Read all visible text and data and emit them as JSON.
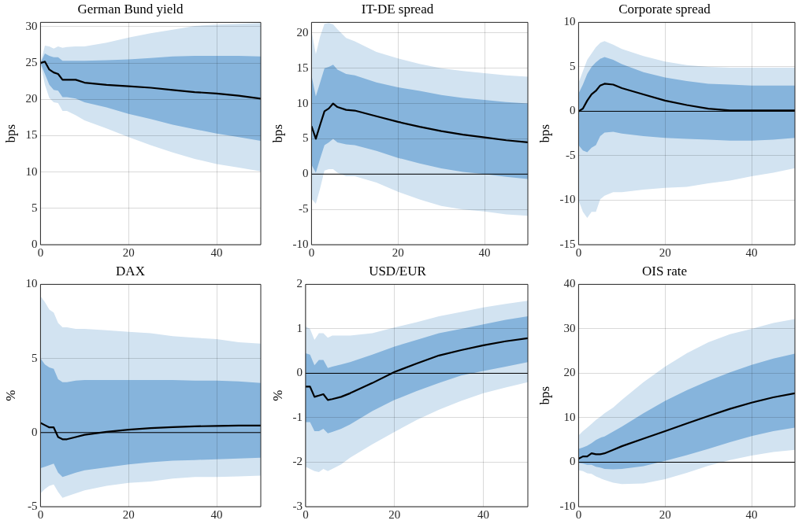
{
  "chart_data": [
    {
      "type": "line",
      "title": "German Bund yield",
      "ylabel": "bps",
      "xlim": [
        0,
        50
      ],
      "xticks": [
        0,
        20,
        40
      ],
      "ylim": [
        0,
        30.6
      ],
      "yticks": [
        0,
        5,
        10,
        15,
        20,
        25,
        30
      ],
      "grid": true,
      "marker": "none",
      "x": [
        0,
        1,
        2,
        3,
        4,
        5,
        6,
        8,
        10,
        15,
        20,
        25,
        30,
        35,
        40,
        45,
        50
      ],
      "series": [
        {
          "color": "#d2e3f1",
          "values": [
            null,
            null,
            null,
            null,
            null,
            null,
            null,
            null,
            null,
            null,
            null,
            null,
            null,
            null,
            null,
            null,
            null
          ],
          "lower": [
            25,
            22.0,
            20.2,
            19.6,
            19.5,
            18.4,
            18.4,
            17.8,
            17.1,
            16.0,
            14.8,
            13.7,
            12.7,
            11.8,
            11.1,
            10.6,
            10.1
          ],
          "upper": [
            25,
            27.4,
            27.3,
            27.0,
            27.3,
            27.1,
            27.2,
            27.3,
            27.3,
            27.8,
            28.5,
            29.1,
            29.6,
            30.1,
            30.3,
            30.4,
            30.5
          ]
        },
        {
          "color": "#86b4dc",
          "values": [
            null,
            null,
            null,
            null,
            null,
            null,
            null,
            null,
            null,
            null,
            null,
            null,
            null,
            null,
            null,
            null,
            null
          ],
          "lower": [
            25,
            23.5,
            22.0,
            21.3,
            21.2,
            20.3,
            20.3,
            20.1,
            19.6,
            18.9,
            18.0,
            17.3,
            16.5,
            15.9,
            15.3,
            14.8,
            14.3
          ],
          "upper": [
            25,
            26.3,
            26.0,
            25.8,
            25.8,
            25.3,
            25.3,
            25.3,
            25.3,
            25.4,
            25.5,
            25.7,
            25.9,
            26.0,
            26.0,
            26.0,
            25.9
          ]
        },
        {
          "color": "#000000",
          "values": [
            25,
            25.2,
            24.1,
            23.7,
            23.5,
            22.7,
            22.7,
            22.7,
            22.3,
            22.0,
            21.8,
            21.6,
            21.3,
            21.0,
            20.8,
            20.5,
            20.1
          ]
        }
      ]
    },
    {
      "type": "line",
      "title": "IT-DE spread",
      "ylabel": "bps",
      "xlim": [
        0,
        50
      ],
      "xticks": [
        0,
        20,
        40
      ],
      "ylim": [
        -10,
        21.5
      ],
      "yticks": [
        -10,
        -5,
        0,
        5,
        10,
        15,
        20
      ],
      "grid": true,
      "marker": "none",
      "ref_lines": [
        {
          "axis": "y",
          "value": 0,
          "color": "#000000"
        }
      ],
      "x": [
        0,
        1,
        2,
        3,
        4,
        5,
        6,
        8,
        10,
        15,
        20,
        25,
        30,
        35,
        40,
        45,
        50
      ],
      "series": [
        {
          "color": "#d2e3f1",
          "values": [
            null,
            null,
            null,
            null,
            null,
            null,
            null,
            null,
            null,
            null,
            null,
            null,
            null,
            null,
            null,
            null,
            null
          ],
          "lower": [
            -3.5,
            -4.2,
            -2,
            0.5,
            0.7,
            0.7,
            0.2,
            -0.3,
            -0.3,
            -1.2,
            -2.5,
            -3.6,
            -4.5,
            -5.0,
            -5.3,
            -5.7,
            -5.9
          ],
          "upper": [
            20.3,
            17,
            19.5,
            21.3,
            21.4,
            21.2,
            20.5,
            19.3,
            18.8,
            17.3,
            16.4,
            15.6,
            15.0,
            14.6,
            14.3,
            14.0,
            13.8
          ]
        },
        {
          "color": "#86b4dc",
          "values": [
            null,
            null,
            null,
            null,
            null,
            null,
            null,
            null,
            null,
            null,
            null,
            null,
            null,
            null,
            null,
            null,
            null
          ],
          "lower": [
            1.3,
            0.2,
            2.2,
            4.1,
            4.5,
            5.0,
            4.5,
            4.2,
            4.1,
            3.3,
            2.3,
            1.5,
            0.8,
            0.3,
            0.0,
            -0.4,
            -0.7
          ],
          "upper": [
            14,
            11,
            13,
            15,
            15.2,
            15.5,
            14.8,
            14.2,
            14.0,
            13.0,
            12.3,
            11.8,
            11.2,
            10.8,
            10.5,
            10.2,
            10.0
          ]
        },
        {
          "color": "#000000",
          "values": [
            6.8,
            5.0,
            7.0,
            8.9,
            9.3,
            10.0,
            9.5,
            9.1,
            9.0,
            8.2,
            7.4,
            6.7,
            6.1,
            5.6,
            5.2,
            4.8,
            4.5
          ]
        }
      ]
    },
    {
      "type": "line",
      "title": "Corporate spread",
      "ylabel": "bps",
      "xlim": [
        0,
        50
      ],
      "xticks": [
        0,
        20,
        40
      ],
      "ylim": [
        -15,
        10
      ],
      "yticks": [
        -15,
        -10,
        -5,
        0,
        5,
        10
      ],
      "grid": true,
      "marker": "none",
      "ref_lines": [
        {
          "axis": "y",
          "value": 0,
          "color": "#000000"
        }
      ],
      "x": [
        0,
        1,
        2,
        3,
        4,
        5,
        6,
        8,
        10,
        15,
        20,
        25,
        30,
        35,
        40,
        45,
        50
      ],
      "series": [
        {
          "color": "#d2e3f1",
          "values": [
            null,
            null,
            null,
            null,
            null,
            null,
            null,
            null,
            null,
            null,
            null,
            null,
            null,
            null,
            null,
            null,
            null
          ],
          "lower": [
            -10,
            -11.3,
            -12,
            -11.3,
            -11.3,
            -9.9,
            -9.5,
            -9.1,
            -9.1,
            -8.8,
            -8.6,
            -8.5,
            -8.1,
            -7.8,
            -7.3,
            -6.9,
            -6.4
          ],
          "upper": [
            3.2,
            4.5,
            5.8,
            6.5,
            7.2,
            7.7,
            7.9,
            7.5,
            7.0,
            6.2,
            5.6,
            5.2,
            5.0,
            4.9,
            4.9,
            4.9,
            4.9
          ]
        },
        {
          "color": "#86b4dc",
          "values": [
            null,
            null,
            null,
            null,
            null,
            null,
            null,
            null,
            null,
            null,
            null,
            null,
            null,
            null,
            null,
            null,
            null
          ],
          "lower": [
            -3.8,
            -4.4,
            -4.6,
            -4.1,
            -3.8,
            -2.8,
            -2.4,
            -2.3,
            -2.5,
            -2.8,
            -3.0,
            -3.1,
            -3.2,
            -3.3,
            -3.3,
            -3.2,
            -3.0
          ],
          "upper": [
            2.0,
            3.0,
            4.2,
            5.0,
            5.5,
            5.9,
            6.1,
            5.8,
            5.3,
            4.4,
            3.8,
            3.4,
            3.1,
            3.0,
            2.9,
            2.9,
            2.9
          ]
        },
        {
          "color": "#000000",
          "values": [
            0,
            0.3,
            1.2,
            1.9,
            2.3,
            2.9,
            3.1,
            3.0,
            2.6,
            1.9,
            1.2,
            0.7,
            0.3,
            0.1,
            0.1,
            0.1,
            0.1
          ]
        }
      ]
    },
    {
      "type": "line",
      "title": "DAX",
      "ylabel": "%",
      "xlim": [
        0,
        50
      ],
      "xticks": [
        0,
        20,
        40
      ],
      "ylim": [
        -5,
        10
      ],
      "yticks": [
        -5,
        0,
        5,
        10
      ],
      "grid": true,
      "marker": "none",
      "ref_lines": [
        {
          "axis": "y",
          "value": 0,
          "color": "#000000"
        }
      ],
      "x": [
        0,
        1,
        2,
        3,
        4,
        5,
        6,
        8,
        10,
        15,
        20,
        25,
        30,
        35,
        40,
        45,
        50
      ],
      "series": [
        {
          "color": "#d2e3f1",
          "values": [
            null,
            null,
            null,
            null,
            null,
            null,
            null,
            null,
            null,
            null,
            null,
            null,
            null,
            null,
            null,
            null,
            null
          ],
          "lower": [
            -4.1,
            -3.8,
            -3.6,
            -3.5,
            -4.0,
            -4.4,
            -4.3,
            -4.1,
            -3.9,
            -3.6,
            -3.4,
            -3.3,
            -3.1,
            -3.0,
            -3.0,
            -2.95,
            -2.9
          ],
          "upper": [
            9.2,
            8.8,
            8.3,
            8.1,
            7.4,
            7.1,
            7.1,
            7.0,
            7.0,
            6.9,
            6.8,
            6.7,
            6.5,
            6.4,
            6.3,
            6.1,
            6.0
          ]
        },
        {
          "color": "#86b4dc",
          "values": [
            null,
            null,
            null,
            null,
            null,
            null,
            null,
            null,
            null,
            null,
            null,
            null,
            null,
            null,
            null,
            null,
            null
          ],
          "lower": [
            -2.4,
            -2.3,
            -2.2,
            -2.1,
            -2.7,
            -3.0,
            -2.9,
            -2.7,
            -2.55,
            -2.35,
            -2.15,
            -2.0,
            -1.9,
            -1.85,
            -1.8,
            -1.75,
            -1.7
          ],
          "upper": [
            5.0,
            4.6,
            4.4,
            4.3,
            3.6,
            3.4,
            3.4,
            3.5,
            3.55,
            3.55,
            3.55,
            3.55,
            3.55,
            3.5,
            3.5,
            3.45,
            3.35
          ]
        },
        {
          "color": "#000000",
          "values": [
            0.65,
            0.5,
            0.35,
            0.35,
            -0.3,
            -0.45,
            -0.45,
            -0.3,
            -0.15,
            0.05,
            0.2,
            0.3,
            0.37,
            0.42,
            0.45,
            0.47,
            0.47
          ]
        }
      ]
    },
    {
      "type": "line",
      "title": "USD/EUR",
      "ylabel": "%",
      "xlim": [
        0,
        50
      ],
      "xticks": [
        0,
        20,
        40
      ],
      "ylim": [
        -3,
        2
      ],
      "yticks": [
        -3,
        -2,
        -1,
        0,
        1,
        2
      ],
      "grid": true,
      "marker": "none",
      "ref_lines": [
        {
          "axis": "y",
          "value": 0,
          "color": "#000000"
        }
      ],
      "x": [
        0,
        1,
        2,
        3,
        4,
        5,
        6,
        8,
        10,
        15,
        20,
        25,
        30,
        35,
        40,
        45,
        50
      ],
      "series": [
        {
          "color": "#d2e3f1",
          "values": [
            null,
            null,
            null,
            null,
            null,
            null,
            null,
            null,
            null,
            null,
            null,
            null,
            null,
            null,
            null,
            null,
            null
          ],
          "lower": [
            -2.1,
            -2.15,
            -2.2,
            -2.22,
            -2.15,
            -2.2,
            -2.15,
            -2.05,
            -1.9,
            -1.6,
            -1.32,
            -1.05,
            -0.82,
            -0.62,
            -0.45,
            -0.32,
            -0.2
          ],
          "upper": [
            1.05,
            1.0,
            0.75,
            0.9,
            0.9,
            0.8,
            0.85,
            0.85,
            0.85,
            0.9,
            1.03,
            1.15,
            1.28,
            1.38,
            1.48,
            1.56,
            1.63
          ]
        },
        {
          "color": "#86b4dc",
          "values": [
            null,
            null,
            null,
            null,
            null,
            null,
            null,
            null,
            null,
            null,
            null,
            null,
            null,
            null,
            null,
            null,
            null
          ],
          "lower": [
            -1.1,
            -1.1,
            -1.3,
            -1.3,
            -1.25,
            -1.35,
            -1.32,
            -1.25,
            -1.15,
            -0.85,
            -0.6,
            -0.4,
            -0.22,
            -0.05,
            0.05,
            0.15,
            0.25
          ],
          "upper": [
            0.45,
            0.42,
            0.18,
            0.3,
            0.3,
            0.12,
            0.15,
            0.2,
            0.25,
            0.42,
            0.6,
            0.75,
            0.9,
            1.0,
            1.1,
            1.2,
            1.28
          ]
        },
        {
          "color": "#000000",
          "values": [
            -0.3,
            -0.3,
            -0.53,
            -0.5,
            -0.47,
            -0.6,
            -0.58,
            -0.53,
            -0.45,
            -0.22,
            0.03,
            0.22,
            0.4,
            0.52,
            0.63,
            0.72,
            0.79
          ]
        }
      ]
    },
    {
      "type": "line",
      "title": "OIS rate",
      "ylabel": "bps",
      "xlim": [
        0,
        50
      ],
      "xticks": [
        0,
        20,
        40
      ],
      "ylim": [
        -10,
        40
      ],
      "yticks": [
        -10,
        0,
        10,
        20,
        30,
        40
      ],
      "grid": true,
      "marker": "none",
      "ref_lines": [
        {
          "axis": "y",
          "value": 0,
          "color": "#000000"
        }
      ],
      "x": [
        0,
        1,
        2,
        3,
        4,
        5,
        6,
        8,
        10,
        15,
        20,
        25,
        30,
        35,
        40,
        45,
        50
      ],
      "series": [
        {
          "color": "#d2e3f1",
          "values": [
            null,
            null,
            null,
            null,
            null,
            null,
            null,
            null,
            null,
            null,
            null,
            null,
            null,
            null,
            null,
            null,
            null
          ],
          "lower": [
            -1.8,
            -2.0,
            -2.5,
            -2.6,
            -3.2,
            -3.6,
            -4.0,
            -4.6,
            -4.9,
            -4.8,
            -3.8,
            -2.4,
            -0.8,
            0.5,
            1.5,
            2.3,
            2.8
          ],
          "upper": [
            6.0,
            7.0,
            7.8,
            8.6,
            9.5,
            10.2,
            11.0,
            12.3,
            14.0,
            18.0,
            21.5,
            24.5,
            27.0,
            28.8,
            30.0,
            31.3,
            32.2
          ]
        },
        {
          "color": "#86b4dc",
          "values": [
            null,
            null,
            null,
            null,
            null,
            null,
            null,
            null,
            null,
            null,
            null,
            null,
            null,
            null,
            null,
            null,
            null
          ],
          "lower": [
            -0.2,
            -0.3,
            -0.6,
            -0.6,
            -1.0,
            -1.2,
            -1.5,
            -1.6,
            -1.5,
            -0.9,
            0.3,
            1.6,
            3.0,
            4.5,
            5.9,
            7.0,
            7.8
          ],
          "upper": [
            3.0,
            3.3,
            3.7,
            4.3,
            5.0,
            5.5,
            5.8,
            6.9,
            8.0,
            11.0,
            13.8,
            16.2,
            18.3,
            20.2,
            21.9,
            23.3,
            24.4
          ]
        },
        {
          "color": "#000000",
          "values": [
            0.8,
            1.3,
            1.3,
            2.0,
            1.8,
            1.8,
            2.0,
            2.8,
            3.6,
            5.3,
            7.0,
            8.7,
            10.4,
            12.0,
            13.4,
            14.6,
            15.5
          ]
        }
      ]
    }
  ]
}
